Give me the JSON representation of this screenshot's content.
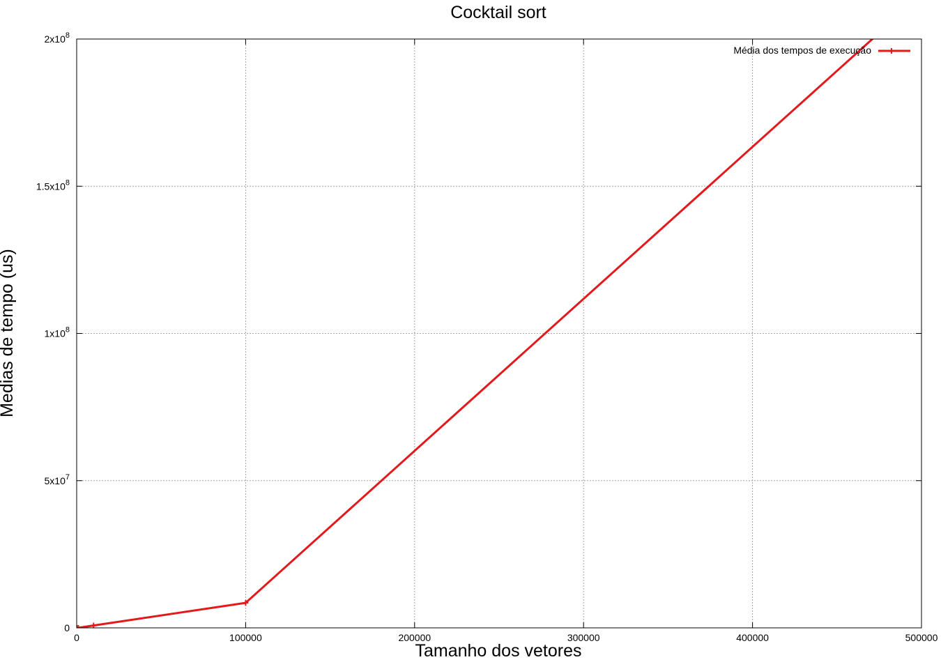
{
  "chart_data": {
    "type": "line",
    "title": "Cocktail sort",
    "xlabel": "Tamanho dos vetores",
    "ylabel": "Medias de tempo (us)",
    "xlim": [
      0,
      500000
    ],
    "ylim": [
      0,
      200000000
    ],
    "x_ticks": [
      {
        "value": 0,
        "label": "0"
      },
      {
        "value": 100000,
        "label": "100000"
      },
      {
        "value": 200000,
        "label": "200000"
      },
      {
        "value": 300000,
        "label": "300000"
      },
      {
        "value": 400000,
        "label": "400000"
      },
      {
        "value": 500000,
        "label": "500000"
      }
    ],
    "y_ticks": [
      {
        "value": 0,
        "mantissa": "0",
        "exp": ""
      },
      {
        "value": 50000000,
        "mantissa": "5x10",
        "exp": "7"
      },
      {
        "value": 100000000,
        "mantissa": "1x10",
        "exp": "8"
      },
      {
        "value": 150000000,
        "mantissa": "1.5x10",
        "exp": "8"
      },
      {
        "value": 200000000,
        "mantissa": "2x10",
        "exp": "8"
      }
    ],
    "grid": true,
    "legend_position": "top-right",
    "series": [
      {
        "name": "Média dos tempos de execução",
        "color": "#e31a1c",
        "points": [
          {
            "x": 100,
            "y": 0
          },
          {
            "x": 1000,
            "y": 20000
          },
          {
            "x": 10000,
            "y": 800000
          },
          {
            "x": 100000,
            "y": 8500000
          },
          {
            "x": 500000,
            "y": 215000000
          }
        ]
      }
    ]
  }
}
